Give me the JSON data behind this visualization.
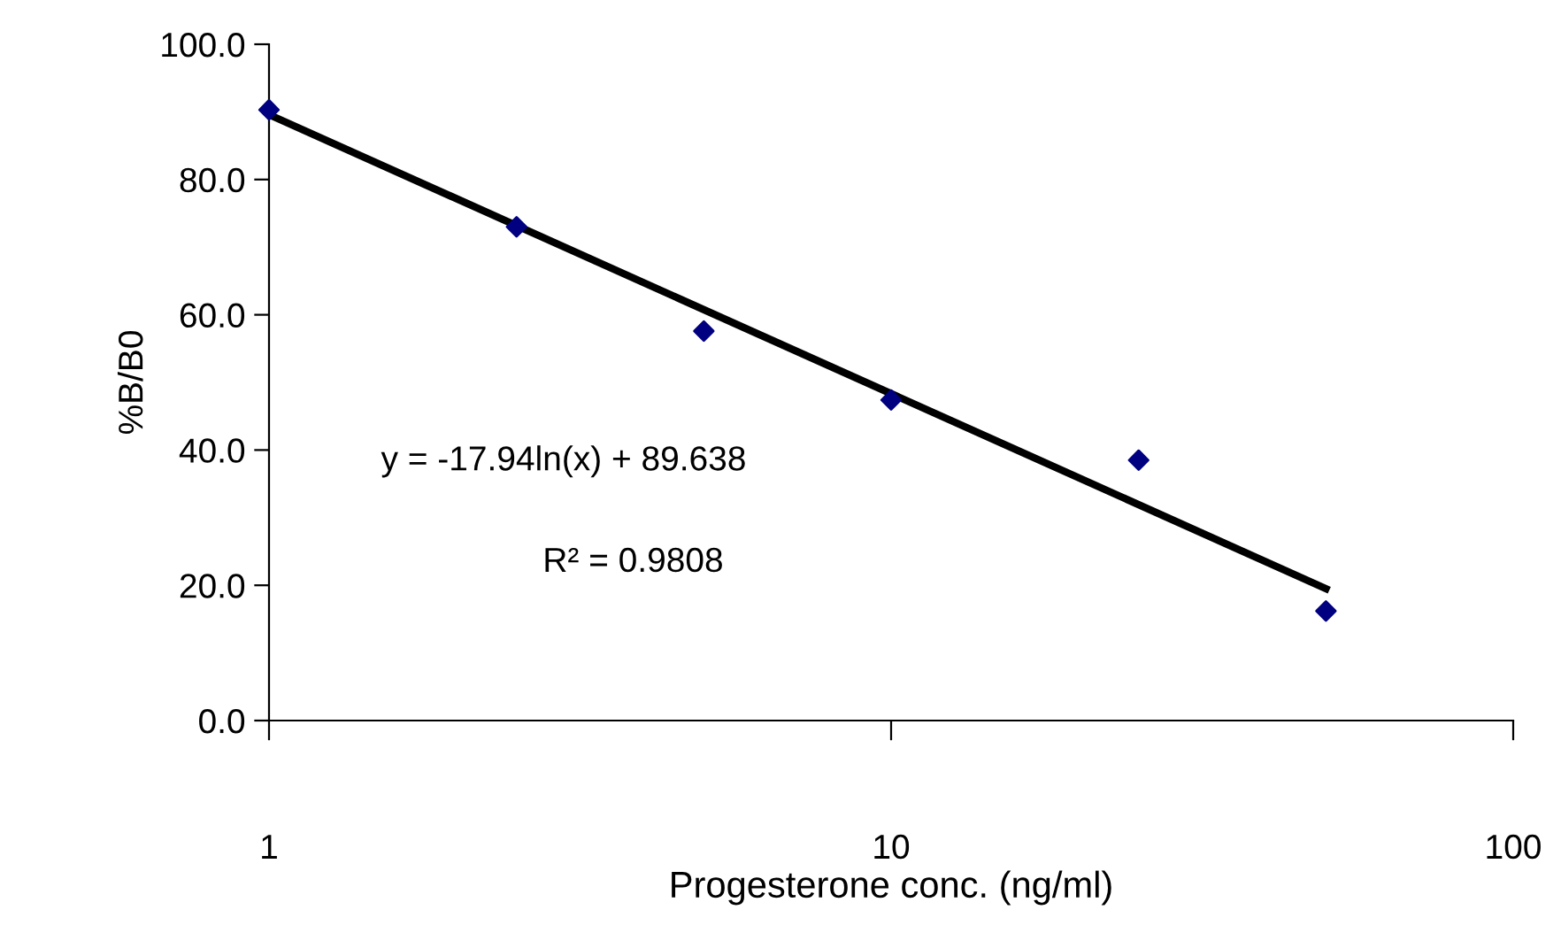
{
  "chart_data": {
    "type": "scatter",
    "xlabel": "Progesterone conc. (ng/ml)",
    "ylabel": "%B/B0",
    "log": "x",
    "xlim": [
      1,
      100
    ],
    "xticks": [
      1,
      10,
      100
    ],
    "ylim": [
      0,
      100
    ],
    "yticks": [
      {
        "value": 0,
        "label": "0.0"
      },
      {
        "value": 20,
        "label": "20.0"
      },
      {
        "value": 40,
        "label": "40.0"
      },
      {
        "value": 60,
        "label": "60.0"
      },
      {
        "value": 80,
        "label": "80.0"
      },
      {
        "value": 100,
        "label": "100.0"
      }
    ],
    "grid": false,
    "legend": false,
    "series": [
      {
        "color": "#000080",
        "marker": "diamond",
        "x": [
          1,
          2.5,
          5,
          10,
          25,
          50
        ],
        "values": [
          90.3,
          73.0,
          57.6,
          47.4,
          38.5,
          16.2
        ]
      },
      {
        "type": "line",
        "color": "#000000",
        "marker": "none",
        "line_style": "solid",
        "x": [
          1,
          50
        ],
        "values": [
          89.6,
          19.5
        ]
      }
    ],
    "annotations": [
      "y = -17.94ln(x) + 89.638",
      "R² = 0.9808"
    ]
  }
}
